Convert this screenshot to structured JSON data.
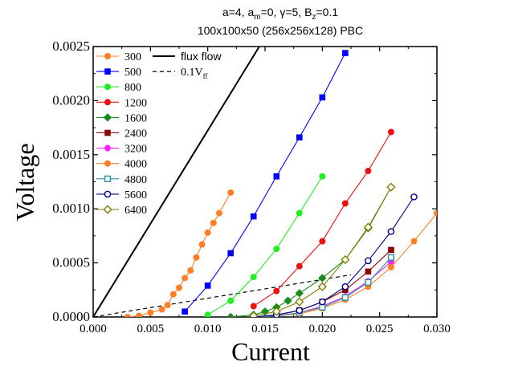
{
  "chart_data": {
    "type": "line",
    "title_line1": "a=4, a",
    "title_sub_m": "m",
    "title_line1b": "=0, γ=5, B",
    "title_sub_z": "z",
    "title_line1c": "=0.1",
    "title_line2": "100x100x50 (256x256x128) PBC",
    "xlabel": "Current",
    "ylabel": "Voltage",
    "xlim": [
      0.0,
      0.03
    ],
    "ylim": [
      0.0,
      0.0025
    ],
    "xticks": [
      "0.000",
      "0.005",
      "0.010",
      "0.015",
      "0.020",
      "0.025",
      "0.030"
    ],
    "yticks": [
      "0.0000",
      "0.0005",
      "0.0010",
      "0.0015",
      "0.0020",
      "0.0025"
    ],
    "xtick_values": [
      0,
      0.005,
      0.01,
      0.015,
      0.02,
      0.025,
      0.03
    ],
    "ytick_values": [
      0,
      0.0005,
      0.001,
      0.0015,
      0.002,
      0.0025
    ],
    "reference_lines": [
      {
        "name": "flux flow",
        "style": "solid",
        "color": "#000000",
        "x": [
          0.0,
          0.0145
        ],
        "y": [
          0.0,
          0.0025
        ]
      },
      {
        "name": "0.1V",
        "name_sub": "ff",
        "style": "dashed",
        "color": "#000000",
        "x": [
          0.0,
          0.0225
        ],
        "y": [
          0.0,
          0.00039
        ]
      }
    ],
    "series": [
      {
        "name": "300",
        "color": "#ff7f27",
        "marker": "circle",
        "filled": true,
        "x": [
          0.003,
          0.004,
          0.005,
          0.006,
          0.0065,
          0.007,
          0.0075,
          0.008,
          0.0085,
          0.009,
          0.0095,
          0.01,
          0.0105,
          0.011,
          0.012
        ],
        "y": [
          0.0,
          1e-05,
          4e-05,
          7e-05,
          0.00011,
          0.00021,
          0.00027,
          0.00036,
          0.00043,
          0.00055,
          0.00067,
          0.00078,
          0.00087,
          0.00096,
          0.00115
        ]
      },
      {
        "name": "500",
        "color": "#0000ff",
        "marker": "square",
        "filled": true,
        "x": [
          0.008,
          0.01,
          0.012,
          0.014,
          0.016,
          0.018,
          0.02,
          0.022
        ],
        "y": [
          5e-05,
          0.00029,
          0.00059,
          0.00093,
          0.0013,
          0.00166,
          0.00203,
          0.00244
        ]
      },
      {
        "name": "800",
        "color": "#22ee22",
        "marker": "circle",
        "filled": true,
        "x": [
          0.01,
          0.012,
          0.014,
          0.016,
          0.018,
          0.02
        ],
        "y": [
          2e-05,
          0.00015,
          0.00037,
          0.00063,
          0.00096,
          0.0013
        ]
      },
      {
        "name": "1200",
        "color": "#ee1111",
        "marker": "circle",
        "filled": true,
        "x": [
          0.014,
          0.016,
          0.018,
          0.02,
          0.022,
          0.024,
          0.026
        ],
        "y": [
          0.0001,
          0.00024,
          0.00047,
          0.0007,
          0.00105,
          0.00135,
          0.00171
        ]
      },
      {
        "name": "1600",
        "color": "#1a8a1a",
        "marker": "diamond",
        "filled": true,
        "x": [
          0.012,
          0.014,
          0.015,
          0.016,
          0.017,
          0.018,
          0.02,
          0.022,
          0.024,
          0.026
        ],
        "y": [
          0.0,
          2e-05,
          5e-05,
          9e-05,
          0.00015,
          0.00022,
          0.00036,
          0.00053,
          0.00082,
          0.0012
        ]
      },
      {
        "name": "2400",
        "color": "#8b0000",
        "marker": "square",
        "filled": true,
        "x": [
          0.014,
          0.016,
          0.018,
          0.02,
          0.022,
          0.024,
          0.026
        ],
        "y": [
          0.0,
          2e-05,
          6e-05,
          0.00014,
          0.00025,
          0.00042,
          0.00062
        ]
      },
      {
        "name": "3200",
        "color": "#ff22ff",
        "marker": "circle",
        "filled": true,
        "x": [
          0.014,
          0.016,
          0.018,
          0.02,
          0.022,
          0.024,
          0.026
        ],
        "y": [
          0.0,
          1e-05,
          4e-05,
          0.0001,
          0.00019,
          0.00033,
          0.00051
        ]
      },
      {
        "name": "4000",
        "color": "#ff7f27",
        "marker": "circle",
        "filled": true,
        "x": [
          0.014,
          0.016,
          0.018,
          0.02,
          0.022,
          0.024,
          0.026,
          0.028,
          0.03
        ],
        "y": [
          0.0,
          1e-05,
          3e-05,
          8e-05,
          0.00016,
          0.00028,
          0.00046,
          0.0007,
          0.00096
        ]
      },
      {
        "name": "4800",
        "color": "#2a8f9f",
        "marker": "square",
        "filled": false,
        "x": [
          0.014,
          0.016,
          0.018,
          0.02,
          0.022,
          0.024,
          0.026
        ],
        "y": [
          0.0,
          1e-05,
          4e-05,
          9e-05,
          0.00018,
          0.00032,
          0.00055
        ]
      },
      {
        "name": "5600",
        "color": "#00008b",
        "marker": "circle",
        "filled": false,
        "x": [
          0.014,
          0.016,
          0.018,
          0.02,
          0.022,
          0.024,
          0.026,
          0.028
        ],
        "y": [
          0.0,
          2e-05,
          6e-05,
          0.00014,
          0.00028,
          0.00052,
          0.00079,
          0.00111
        ]
      },
      {
        "name": "6400",
        "color": "#808000",
        "marker": "diamond",
        "filled": false,
        "x": [
          0.014,
          0.016,
          0.018,
          0.02,
          0.022,
          0.024,
          0.026
        ],
        "y": [
          1e-05,
          5e-05,
          0.00014,
          0.00028,
          0.00053,
          0.00083,
          0.0012
        ]
      }
    ]
  }
}
